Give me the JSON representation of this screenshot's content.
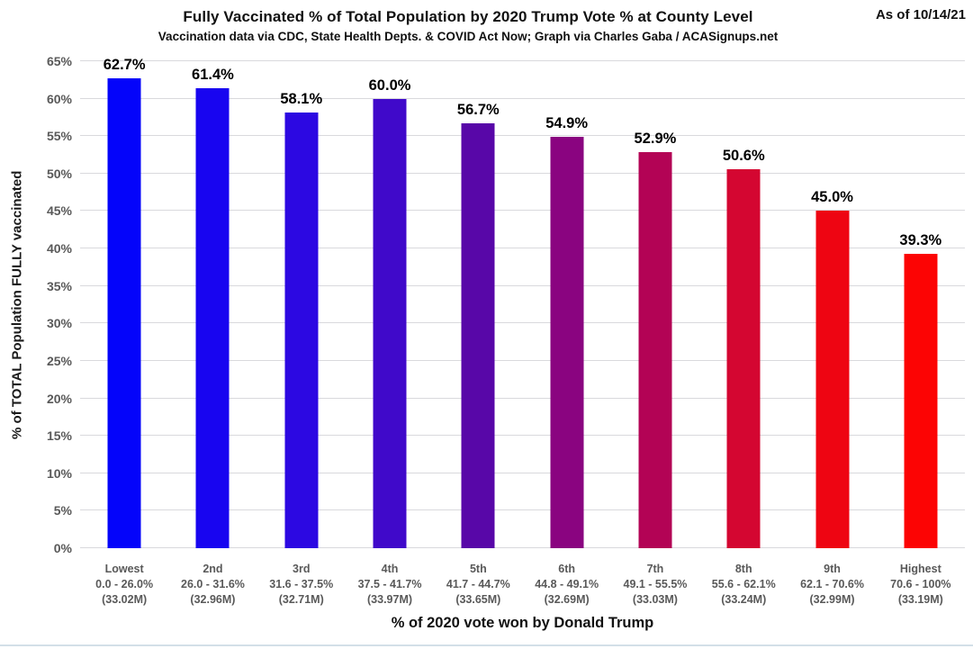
{
  "header": {
    "title": "Fully Vaccinated % of Total Population by 2020 Trump Vote % at County Level",
    "subtitle": "Vaccination data via CDC, State Health Depts. & COVID Act Now; Graph via Charles Gaba / ACASignups.net",
    "as_of": "As of 10/14/21"
  },
  "chart_data": {
    "type": "bar",
    "title": "Fully Vaccinated % of Total Population by 2020 Trump Vote % at County Level",
    "subtitle": "Vaccination data via CDC, State Health Depts. & COVID Act Now; Graph via Charles Gaba / ACASignups.net",
    "xlabel": "% of 2020 vote won by Donald Trump",
    "ylabel": "% of TOTAL Population FULLY vaccinated",
    "ylim": [
      0,
      65
    ],
    "ytick_step": 5,
    "ytick_labels": [
      "0%",
      "5%",
      "10%",
      "15%",
      "20%",
      "25%",
      "30%",
      "35%",
      "40%",
      "45%",
      "50%",
      "55%",
      "60%",
      "65%"
    ],
    "grid": true,
    "legend": "none",
    "categories": [
      {
        "tier": "Lowest",
        "range": "0.0 - 26.0%",
        "population": "(33.02M)"
      },
      {
        "tier": "2nd",
        "range": "26.0 - 31.6%",
        "population": "(32.96M)"
      },
      {
        "tier": "3rd",
        "range": "31.6 - 37.5%",
        "population": "(32.71M)"
      },
      {
        "tier": "4th",
        "range": "37.5 - 41.7%",
        "population": "(33.97M)"
      },
      {
        "tier": "5th",
        "range": "41.7 - 44.7%",
        "population": "(33.65M)"
      },
      {
        "tier": "6th",
        "range": "44.8 - 49.1%",
        "population": "(32.69M)"
      },
      {
        "tier": "7th",
        "range": "49.1 - 55.5%",
        "population": "(33.03M)"
      },
      {
        "tier": "8th",
        "range": "55.6 - 62.1%",
        "population": "(33.24M)"
      },
      {
        "tier": "9th",
        "range": "62.1 - 70.6%",
        "population": "(32.99M)"
      },
      {
        "tier": "Highest",
        "range": "70.6 - 100%",
        "population": "(33.19M)"
      }
    ],
    "values": [
      62.7,
      61.4,
      58.1,
      60.0,
      56.7,
      54.9,
      52.9,
      50.6,
      45.0,
      39.3
    ],
    "value_labels": [
      "62.7%",
      "61.4%",
      "58.1%",
      "60.0%",
      "56.7%",
      "54.9%",
      "52.9%",
      "50.6%",
      "45.0%",
      "39.3%"
    ],
    "bar_colors": [
      "#0404FA",
      "#1805F0",
      "#2C08E2",
      "#4009CA",
      "#5807A8",
      "#8A0480",
      "#B30355",
      "#D40631",
      "#EE0512",
      "#FC0404"
    ]
  },
  "colors": {
    "background": "#ffffff",
    "gridline": "#d9d9dd",
    "tick_label": "#595959",
    "data_label": "#000000",
    "title_text": "#111111"
  }
}
